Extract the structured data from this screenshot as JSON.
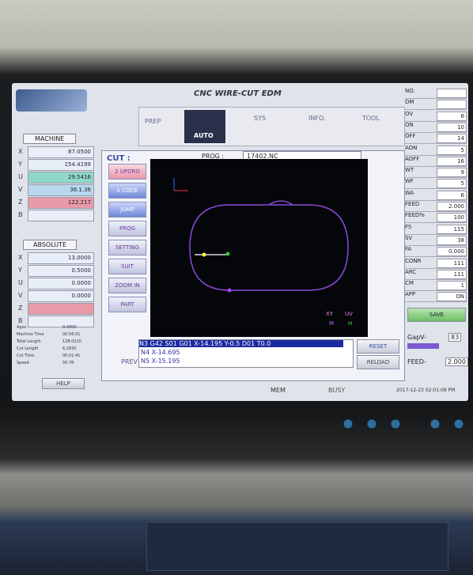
{
  "header": {
    "title": "CNC WIRE-CUT EDM"
  },
  "tabs": [
    "PREP",
    "AUTO",
    "SYS",
    "INFO.",
    "TOOL"
  ],
  "machine": {
    "label": "MACHINE",
    "axes": [
      {
        "axis": "X",
        "value": "87.0500"
      },
      {
        "axis": "Y",
        "value": "154.4199"
      },
      {
        "axis": "U",
        "value": "29.5416"
      },
      {
        "axis": "V",
        "value": "36.1.36"
      },
      {
        "axis": "Z",
        "value": "122.217"
      },
      {
        "axis": "B"
      }
    ]
  },
  "absolute": {
    "label": "ABSOLUTE",
    "axes": [
      {
        "axis": "X",
        "value": "13.0000"
      },
      {
        "axis": "Y",
        "value": "0.5000"
      },
      {
        "axis": "U",
        "value": "0.0000"
      },
      {
        "axis": "V",
        "value": "0.0000"
      },
      {
        "axis": "Z"
      },
      {
        "axis": "B"
      }
    ]
  },
  "info": [
    {
      "name": "Ages",
      "value": "0.0000"
    },
    {
      "name": "Machine Time",
      "value": "00:56:51"
    },
    {
      "name": "Total Length",
      "value": "128.0210"
    },
    {
      "name": "Cut Length",
      "value": "6.2830"
    },
    {
      "name": "Cut Time",
      "value": "00:01:41"
    },
    {
      "name": "Speed",
      "value": "56.78"
    }
  ],
  "cut": {
    "label": "CUT :",
    "prog_label": "PROG :",
    "prog": "17402.NC"
  },
  "side_buttons": [
    "2 UPDRO",
    "S CODE",
    "JUMP",
    "PROG",
    "SETTING",
    "SUIT",
    "ZOOM IN",
    "PART"
  ],
  "view": {
    "legend": [
      "XY",
      "UV",
      "M",
      "H"
    ]
  },
  "program_lines": [
    "N3 G42 S01 G01 X-14.195 Y-0.5 D01 T0.0",
    "N4 X-14.695",
    "N5 X-15.195"
  ],
  "controls": {
    "prev": "PREV",
    "reset": "RESET",
    "reload": "RELOAD",
    "help": "HELP",
    "save": "SAVE"
  },
  "status": {
    "mem": "MEM",
    "busy": "BUSY",
    "datetime": "2017-12-23 02:01:09 PM"
  },
  "params": [
    {
      "name": "NO."
    },
    {
      "name": "DM"
    },
    {
      "name": "OV",
      "value": "6"
    },
    {
      "name": "ON",
      "value": "10"
    },
    {
      "name": "OFF",
      "value": "14"
    },
    {
      "name": "AON",
      "value": "5"
    },
    {
      "name": "AOFF",
      "value": "16"
    },
    {
      "name": "WT",
      "value": "9"
    },
    {
      "name": "WF",
      "value": "5"
    },
    {
      "name": "WA",
      "value": "6"
    },
    {
      "name": "FEED",
      "value": "2.000"
    },
    {
      "name": "FEED%",
      "value": "100"
    },
    {
      "name": "FS",
      "value": "115"
    },
    {
      "name": "SV",
      "value": "38"
    },
    {
      "name": "FA",
      "value": "0.000"
    },
    {
      "name": "CONR",
      "value": "111"
    },
    {
      "name": "ARC",
      "value": "111"
    },
    {
      "name": "CM",
      "value": "1"
    },
    {
      "name": "APP",
      "value": "ON"
    }
  ],
  "gap": {
    "label": "GapV-",
    "value": "83",
    "feed_label": "FEED-",
    "feed_value": "2.000"
  }
}
